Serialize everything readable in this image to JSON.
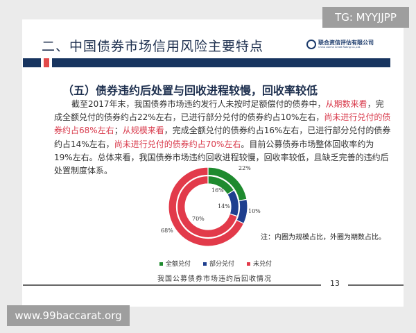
{
  "heading": "二、中国债券市场信用风险主要特点",
  "logo": {
    "name": "联合资信评估有限公司",
    "english": "China Lianhe Credit Rating Co.,Ltd."
  },
  "subheading": "（五）债券违约后处置与回收进程较慢，回收率较低",
  "paragraph": [
    {
      "text": "截至2017年末，我国债券市场违约发行人未按时足额偿付的债券中，",
      "red": false
    },
    {
      "text": "从期数来看",
      "red": true
    },
    {
      "text": "，完成全额兑付的债券约占22%左右，已进行部分兑付的债券约占10%左右，",
      "red": false
    },
    {
      "text": "尚未进行兑付的债券约占68%左右",
      "red": true
    },
    {
      "text": "；",
      "red": false
    },
    {
      "text": "从规模来看",
      "red": true
    },
    {
      "text": "，完成全额兑付的债券约占16%左右，已进行部分兑付的债券约占14%左右，",
      "red": false
    },
    {
      "text": "尚未进行兑付的债券约占70%左右",
      "red": true
    },
    {
      "text": "。目前公募债券市场整体回收率约为19%左右。总体来看，我国债券市场违约回收进程较慢，回收率较低，且缺乏完善的违约后处置制度体系。",
      "red": false
    }
  ],
  "chart_data": {
    "type": "pie",
    "categories": [
      "全额兑付",
      "部分兑付",
      "未兑付"
    ],
    "colors": [
      "#1e8a2e",
      "#1f3f8f",
      "#e23a4a"
    ],
    "series": [
      {
        "ring": "outer",
        "values": [
          22,
          10,
          68
        ],
        "labels": [
          "22%",
          "10%",
          "68%"
        ]
      },
      {
        "ring": "inner",
        "values": [
          16,
          14,
          70
        ],
        "labels": [
          "16%",
          "14%",
          "70%"
        ]
      }
    ],
    "note": "注：内圈为规模占比，外圈为期数占比。",
    "caption": "我国公募债券市场违约后回收情况",
    "legend": "bottom"
  },
  "page_number": "13",
  "watermarks": {
    "top": "TG: MYYJJPP",
    "bottom": "www.99baccarat.org"
  }
}
